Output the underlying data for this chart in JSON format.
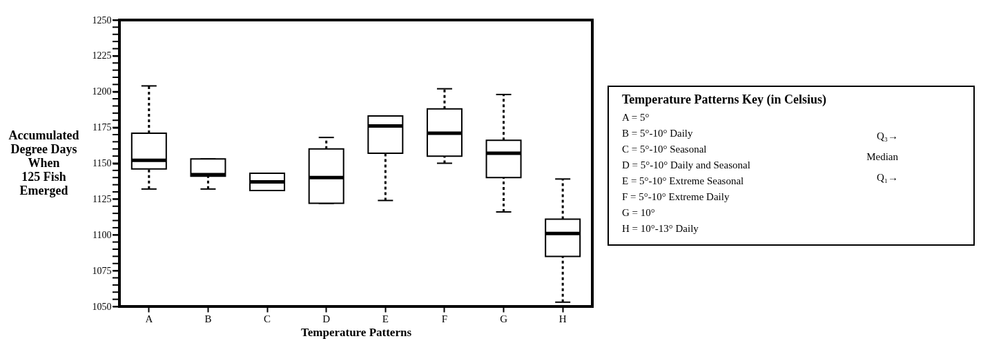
{
  "chart_data": {
    "type": "box",
    "xlabel": "Temperature Patterns",
    "ylabel": "Accumulated\nDegree Days\nWhen\n125 Fish\nEmerged",
    "categories": [
      "A",
      "B",
      "C",
      "D",
      "E",
      "F",
      "G",
      "H"
    ],
    "boxes": [
      {
        "low": 1132,
        "q1": 1146,
        "median": 1152,
        "q3": 1171,
        "high": 1204
      },
      {
        "low": 1132,
        "q1": 1141,
        "median": 1142,
        "q3": 1153,
        "high": 1153
      },
      {
        "low": 1131,
        "q1": 1131,
        "median": 1137,
        "q3": 1143,
        "high": 1143
      },
      {
        "low": 1122,
        "q1": 1122,
        "median": 1140,
        "q3": 1160,
        "high": 1168
      },
      {
        "low": 1124,
        "q1": 1157,
        "median": 1176,
        "q3": 1183,
        "high": 1183
      },
      {
        "low": 1150,
        "q1": 1155,
        "median": 1171,
        "q3": 1188,
        "high": 1202
      },
      {
        "low": 1116,
        "q1": 1140,
        "median": 1157,
        "q3": 1166,
        "high": 1198
      },
      {
        "low": 1053,
        "q1": 1085,
        "median": 1101,
        "q3": 1111,
        "high": 1139
      }
    ],
    "ylim": [
      1050,
      1250
    ],
    "yticks": [
      1050,
      {
        "value": 1055,
        "label": null
      },
      {
        "value": 1060,
        "label": null
      },
      {
        "value": 1065,
        "label": null
      },
      {
        "value": 1070,
        "label": null
      },
      1075,
      {
        "value": 1080,
        "label": null
      },
      {
        "value": 1085,
        "label": null
      },
      {
        "value": 1090,
        "label": null
      },
      {
        "value": 1095,
        "label": null
      },
      1100,
      {
        "value": 1105,
        "label": null
      },
      {
        "value": 1110,
        "label": null
      },
      {
        "value": 1115,
        "label": null
      },
      {
        "value": 1120,
        "label": null
      },
      1125,
      {
        "value": 1130,
        "label": null
      },
      {
        "value": 1135,
        "label": null
      },
      {
        "value": 1140,
        "label": null
      },
      {
        "value": 1145,
        "label": null
      },
      1150,
      {
        "value": 1155,
        "label": null
      },
      {
        "value": 1160,
        "label": null
      },
      {
        "value": 1165,
        "label": null
      },
      {
        "value": 1170,
        "label": null
      },
      1175,
      {
        "value": 1180,
        "label": null
      },
      {
        "value": 1185,
        "label": null
      },
      {
        "value": 1190,
        "label": null
      },
      {
        "value": 1195,
        "label": null
      },
      1200,
      {
        "value": 1205,
        "label": null
      },
      {
        "value": 1210,
        "label": null
      },
      {
        "value": 1215,
        "label": null
      },
      {
        "value": 1220,
        "label": null
      },
      1225,
      {
        "value": 1230,
        "label": null
      },
      {
        "value": 1235,
        "label": null
      },
      {
        "value": 1240,
        "label": null
      },
      {
        "value": 1245,
        "label": null
      },
      1250
    ],
    "grid": false,
    "annotations": [
      "Temperature Patterns Key (in Celsius)",
      "A = 5°",
      "B = 5°-10° Daily",
      "C = 5°-10° Seasonal",
      "D = 5°-10° Daily and Seasonal",
      "E =  5°-10° Extreme Seasonal",
      "F =  5°-10° Extreme Daily",
      "G = 10°",
      "H = 10°-13° Daily",
      "Q₃→",
      "Median",
      "Q₁→"
    ]
  }
}
